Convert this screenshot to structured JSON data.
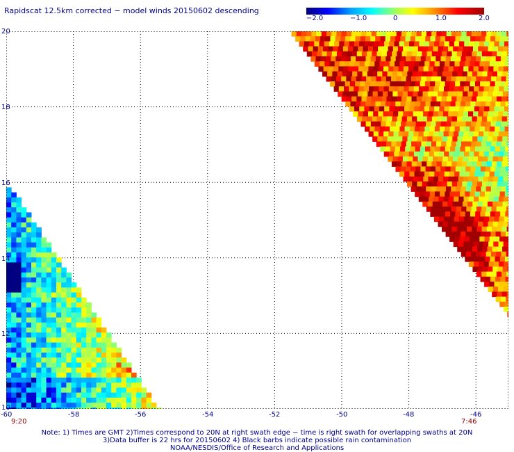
{
  "title": "Rapidscat 12.5km corrected − model winds 20150602 descending",
  "colorbar": {
    "labels": [
      "−2.0",
      "−1.0",
      "0",
      "1.0",
      "2.0"
    ],
    "range": [
      -2.0,
      2.0
    ],
    "colors": [
      "#000080",
      "#0000ff",
      "#00a0ff",
      "#00ffff",
      "#a0ff60",
      "#ffff00",
      "#ff9000",
      "#ff0000",
      "#a00000"
    ]
  },
  "axes": {
    "lon_ticks": [
      "-60",
      "-58",
      "-56",
      "-54",
      "-52",
      "-50",
      "-48",
      "-46"
    ],
    "lat_ticks": [
      "20",
      "18",
      "16",
      "14",
      "12",
      "10"
    ],
    "lon_range": [
      -60,
      -45
    ],
    "lat_range": [
      10,
      20
    ]
  },
  "times": {
    "left": "9:20",
    "right": "7:46"
  },
  "notes": [
    "Note: 1) Times are GMT 2)Times correspond to 20N at right swath edge − time is right swath for overlapping swaths at 20N",
    "3)Data buffer is 22 hrs for 20150602 4) Black barbs indicate possible rain contamination",
    "NOAA/NESDIS/Office of Research and Applications"
  ],
  "map": {
    "left_swath": {
      "lon_west": -60,
      "lat_south": 10,
      "tip_lat": 16,
      "east_edge_lon_at_10N": -55.5,
      "dominant": "cyan-green-yellow"
    },
    "right_swath": {
      "lon_east": -45,
      "lat_north": 20,
      "west_edge_lon_at_20N": -51.5,
      "south_edge_lat_at_45W": 12.5,
      "dominant": "orange-red"
    }
  }
}
